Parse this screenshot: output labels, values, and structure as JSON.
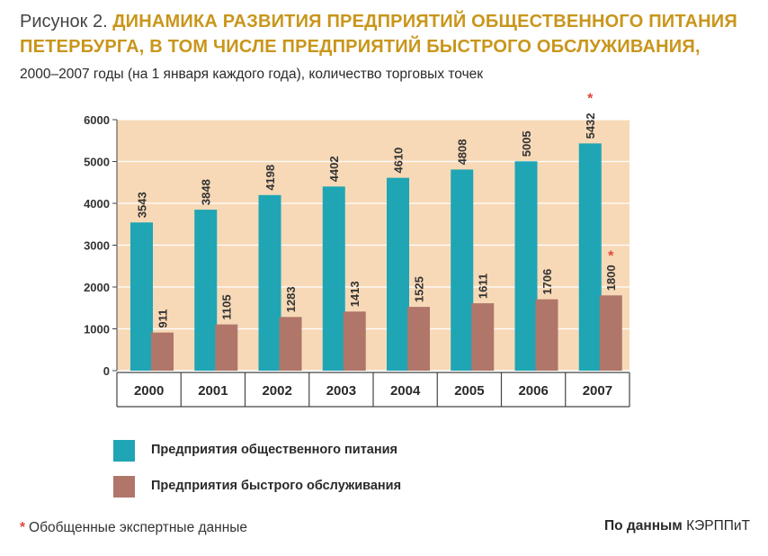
{
  "title_prefix": "Рисунок 2.",
  "title_main": "ДИНАМИКА РАЗВИТИЯ ПРЕДПРИЯТИЙ ОБЩЕСТВЕННОГО ПИТАНИЯ ПЕТЕРБУРГА, В ТОМ ЧИСЛЕ ПРЕДПРИЯТИЙ БЫСТРОГО ОБСЛУЖИВАНИЯ,",
  "subtitle": "2000–2007 годы (на 1 января каждого года), количество торговых точек",
  "colors": {
    "series1": "#1fa5b4",
    "series2": "#b0766a",
    "plot_bg": "#f7d9b7",
    "title_accent": "#c9961b",
    "asterisk": "#e0453a"
  },
  "chart_data": {
    "type": "bar",
    "categories": [
      "2000",
      "2001",
      "2002",
      "2003",
      "2004",
      "2005",
      "2006",
      "2007"
    ],
    "series": [
      {
        "name": "Предприятия общественного питания",
        "values": [
          3543,
          3848,
          4198,
          4402,
          4610,
          4808,
          5005,
          5432
        ]
      },
      {
        "name": "Предприятия быстрого обслуживания",
        "values": [
          911,
          1105,
          1283,
          1413,
          1525,
          1611,
          1706,
          1800
        ]
      }
    ],
    "estimated_markers": [
      "*"
    ],
    "ylim": [
      0,
      6000
    ],
    "yticks": [
      0,
      1000,
      2000,
      3000,
      4000,
      5000,
      6000
    ],
    "grid": true
  },
  "footnote": {
    "symbol": "*",
    "text": "Обобщенные экспертные данные"
  },
  "source": {
    "lead": "По данным",
    "org": "КЭРППиТ"
  }
}
